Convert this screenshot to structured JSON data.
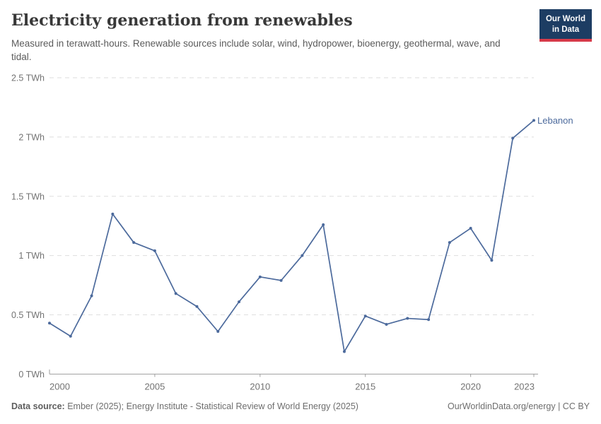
{
  "header": {
    "title": "Electricity generation from renewables",
    "subtitle": "Measured in terawatt-hours. Renewable sources include solar, wind, hydropower, bioenergy, geothermal, wave, and tidal.",
    "logo": {
      "line1": "Our World",
      "line2": "in Data",
      "bg_color": "#1d3d63",
      "bar_color": "#d73a49"
    }
  },
  "chart_data": {
    "type": "line",
    "title": "Electricity generation from renewables",
    "ylabel": "TWh",
    "xlim": [
      2000,
      2023
    ],
    "ylim": [
      0,
      2.5
    ],
    "grid": "horizontal-dashed",
    "legend_position": "end-of-line-label",
    "x": [
      2000,
      2001,
      2002,
      2003,
      2004,
      2005,
      2006,
      2007,
      2008,
      2009,
      2010,
      2011,
      2012,
      2013,
      2014,
      2015,
      2016,
      2017,
      2018,
      2019,
      2020,
      2021,
      2022,
      2023
    ],
    "series": [
      {
        "name": "Lebanon",
        "color": "#4c6a9c",
        "values": [
          0.43,
          0.32,
          0.66,
          1.35,
          1.11,
          1.04,
          0.68,
          0.57,
          0.36,
          0.61,
          0.82,
          0.79,
          1.0,
          1.26,
          0.19,
          0.49,
          0.42,
          0.47,
          0.46,
          1.11,
          1.23,
          0.96,
          1.99,
          2.14
        ]
      }
    ],
    "y_ticks": [
      {
        "value": 0,
        "label": "0 TWh"
      },
      {
        "value": 0.5,
        "label": "0.5 TWh"
      },
      {
        "value": 1,
        "label": "1 TWh"
      },
      {
        "value": 1.5,
        "label": "1.5 TWh"
      },
      {
        "value": 2,
        "label": "2 TWh"
      },
      {
        "value": 2.5,
        "label": "2.5 TWh"
      }
    ],
    "x_ticks": [
      {
        "value": 2000,
        "label": "2000"
      },
      {
        "value": 2005,
        "label": "2005"
      },
      {
        "value": 2010,
        "label": "2010"
      },
      {
        "value": 2015,
        "label": "2015"
      },
      {
        "value": 2020,
        "label": "2020"
      },
      {
        "value": 2023,
        "label": "2023"
      }
    ],
    "colors": {
      "gridline": "#dedede",
      "axis": "#9e9e9e",
      "tick_label": "#737373"
    }
  },
  "footer": {
    "source_prefix": "Data source:",
    "source_text": " Ember (2025); Energy Institute - Statistical Review of World Energy (2025)",
    "link_text": "OurWorldinData.org/energy | CC BY"
  }
}
